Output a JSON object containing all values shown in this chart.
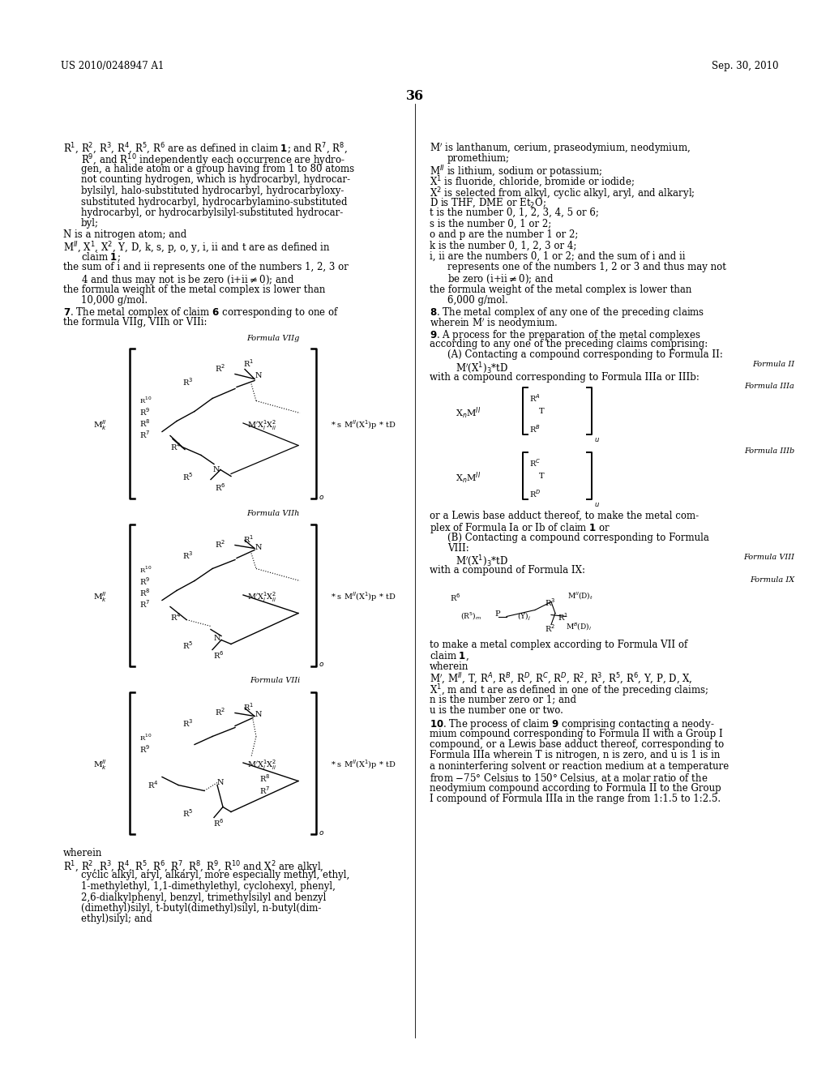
{
  "bg_color": "#ffffff",
  "header_left": "US 2010/0248947 A1",
  "header_right": "Sep. 30, 2010",
  "page_number": "36",
  "font_size": 8.5,
  "small_font": 7.5,
  "formula_font": 7.0
}
